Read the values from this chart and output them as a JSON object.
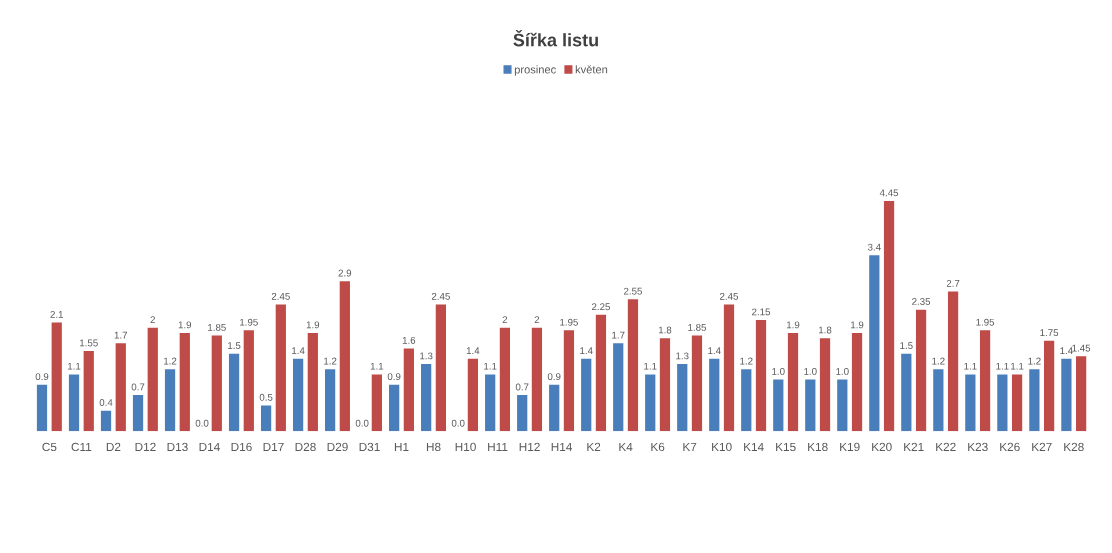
{
  "chart_data": {
    "type": "bar",
    "title": "Šířka listu",
    "categories": [
      "C5",
      "C11",
      "D2",
      "D12",
      "D13",
      "D14",
      "D16",
      "D17",
      "D28",
      "D29",
      "D31",
      "H1",
      "H8",
      "H10",
      "H11",
      "H12",
      "H14",
      "K2",
      "K4",
      "K6",
      "K7",
      "K10",
      "K14",
      "K15",
      "K18",
      "K19",
      "K20",
      "K21",
      "K22",
      "K23",
      "K26",
      "K27",
      "K28"
    ],
    "series": [
      {
        "name": "prosinec",
        "color": "#4a7ebb",
        "values": [
          0.9,
          1.1,
          0.4,
          0.7,
          1.2,
          0.0,
          1.5,
          0.5,
          1.4,
          1.2,
          0.0,
          0.9,
          1.3,
          0.0,
          1.1,
          0.7,
          0.9,
          1.4,
          1.7,
          1.1,
          1.3,
          1.4,
          1.2,
          1.0,
          1.0,
          1.0,
          3.4,
          1.5,
          1.2,
          1.1,
          1.1,
          1.2,
          1.4
        ],
        "value_labels": [
          "0.9",
          "1.1",
          "0.4",
          "0.7",
          "1.2",
          "0.0",
          "1.5",
          "0.5",
          "1.4",
          "1.2",
          "0.0",
          "0.9",
          "1.3",
          "0.0",
          "1.1",
          "0.7",
          "0.9",
          "1.4",
          "1.7",
          "1.1",
          "1.3",
          "1.4",
          "1.2",
          "1.0",
          "1.0",
          "1.0",
          "3.4",
          "1.5",
          "1.2",
          "1.1",
          "1.1",
          "1.2",
          "1.4"
        ]
      },
      {
        "name": "květen",
        "color": "#be4b48",
        "values": [
          2.1,
          1.55,
          1.7,
          2,
          1.9,
          1.85,
          1.95,
          2.45,
          1.9,
          2.9,
          1.1,
          1.6,
          2.45,
          1.4,
          2,
          2,
          1.95,
          2.25,
          2.55,
          1.8,
          1.85,
          2.45,
          2.15,
          1.9,
          1.8,
          1.9,
          4.45,
          2.35,
          2.7,
          1.95,
          1.1,
          1.75,
          1.45
        ],
        "value_labels": [
          "2.1",
          "1.55",
          "1.7",
          "2",
          "1.9",
          "1.85",
          "1.95",
          "2.45",
          "1.9",
          "2.9",
          "1.1",
          "1.6",
          "2.45",
          "1.4",
          "2",
          "2",
          "1.95",
          "2.25",
          "2.55",
          "1.8",
          "1.85",
          "2.45",
          "2.15",
          "1.9",
          "1.8",
          "1.9",
          "4.45",
          "2.35",
          "2.7",
          "1.95",
          "1.1",
          "1.75",
          "1.45"
        ]
      }
    ],
    "legend": "top"
  }
}
